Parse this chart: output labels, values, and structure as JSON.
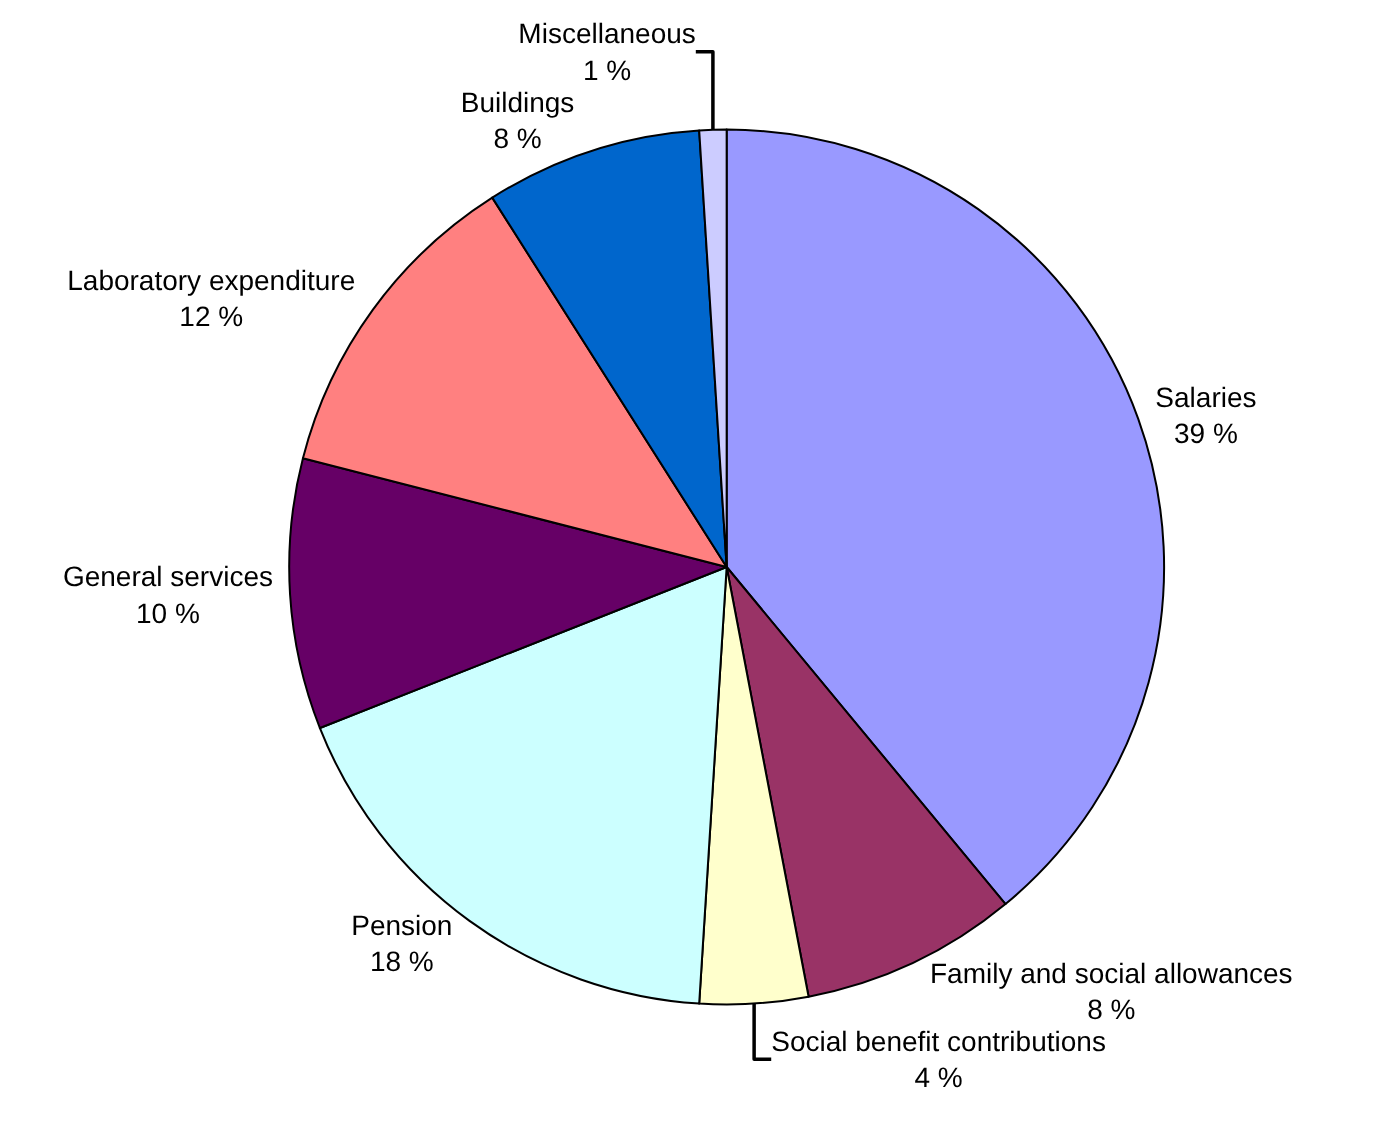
{
  "chart_data": {
    "type": "pie",
    "categories": [
      "Salaries",
      "Family and social allowances",
      "Social benefit contributions",
      "Pension",
      "General services",
      "Laboratory expenditure",
      "Buildings",
      "Miscellaneous"
    ],
    "values": [
      39,
      8,
      4,
      18,
      10,
      12,
      8,
      1
    ],
    "value_labels": [
      "39 %",
      "8 %",
      "4 %",
      "18 %",
      "10 %",
      "12 %",
      "8 %",
      "1 %"
    ],
    "colors": [
      "#9999ff",
      "#993366",
      "#ffffcc",
      "#ccffff",
      "#660066",
      "#ff8080",
      "#0066cc",
      "#ccccff"
    ],
    "legend": false
  }
}
